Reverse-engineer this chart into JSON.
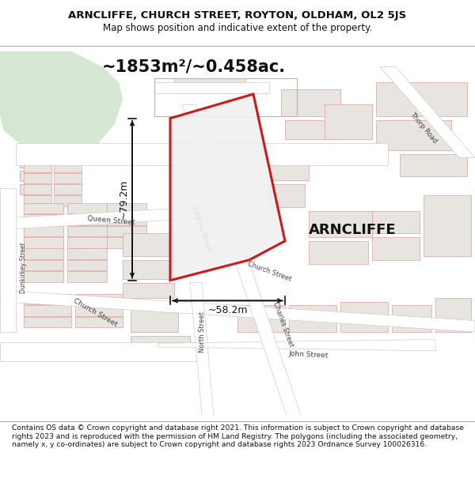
{
  "title_line1": "ARNCLIFFE, CHURCH STREET, ROYTON, OLDHAM, OL2 5JS",
  "title_line2": "Map shows position and indicative extent of the property.",
  "area_text": "~1853m²/~0.458ac.",
  "property_label": "ARNCLIFFE",
  "dim_horizontal": "~58.2m",
  "dim_vertical": "~79.2m",
  "footer_text": "Contains OS data © Crown copyright and database right 2021. This information is subject to Crown copyright and database rights 2023 and is reproduced with the permission of HM Land Registry. The polygons (including the associated geometry, namely x, y co-ordinates) are subject to Crown copyright and database rights 2023 Ordnance Survey 100026316.",
  "map_bg": "#f7f6f4",
  "green_color": "#d6e8d4",
  "road_color": "#ffffff",
  "road_edge": "#cccccc",
  "building_fill": "#e8e4e0",
  "building_edge": "#e0a0a0",
  "property_fill": "#f0f0f0",
  "property_edge": "#cc0000",
  "property_lw": 2.2,
  "dim_color": "#111111",
  "label_color": "#333333",
  "road_label_color": "#444444",
  "header_bg": "#ffffff",
  "footer_bg": "#ffffff",
  "title_color": "#111111",
  "footer_color": "#111111"
}
